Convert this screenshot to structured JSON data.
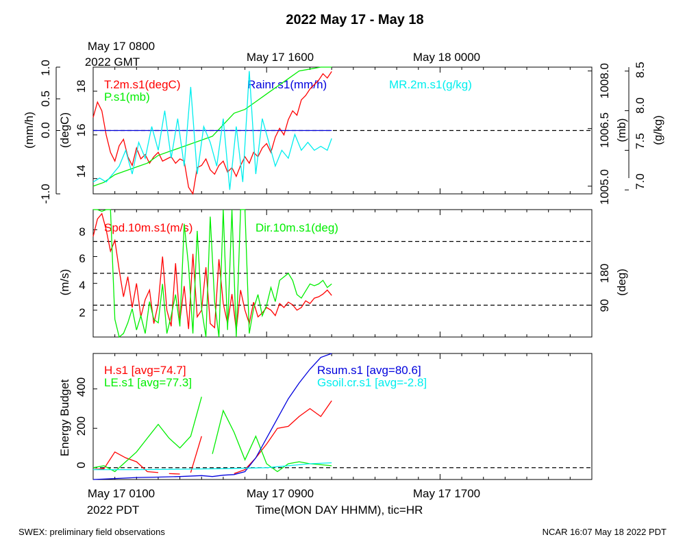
{
  "title": "2022 May 17 - May 18",
  "top_time_labels": [
    "May 17 0800",
    "May 17 1600",
    "May 18 0000"
  ],
  "top_tz_label": "2022 GMT",
  "bottom_time_labels": [
    "May 17 0100",
    "May 17 0900",
    "May 17 1700"
  ],
  "bottom_tz_label": "2022 PDT",
  "xlabel": "Time(MON DAY HHMM), tic=HR",
  "footer_left": "SWEX: preliminary field observations",
  "footer_right": "NCAR 16:07 May 18 2022 PDT",
  "colors": {
    "red": "#ff0000",
    "green": "#00ee00",
    "blue": "#0000dd",
    "cyan": "#00eeee",
    "black": "#000000"
  },
  "chart_data": [
    {
      "type": "line",
      "panel": "top",
      "x_unit": "hours since May 17 0100 PDT",
      "xlim": [
        0,
        23
      ],
      "axes": [
        {
          "label": "(mm/h)",
          "ticks": [
            "-1.0",
            "0.0",
            "0.5",
            "1.0"
          ],
          "lim": [
            -1.0,
            1.0
          ]
        },
        {
          "label": "(degC)",
          "ticks": [
            "14",
            "16",
            "18"
          ],
          "lim": [
            13.3,
            19.1
          ]
        },
        {
          "label": "(mb)",
          "ticks": [
            "1005.0",
            "1006.5",
            "1008.0"
          ],
          "lim": [
            1004.8,
            1008.1
          ]
        },
        {
          "label": "(g/kg)",
          "ticks": [
            "7.0",
            "7.5",
            "8.0",
            "8.5"
          ],
          "lim": [
            6.95,
            8.55
          ]
        }
      ],
      "reference_line": 0.0,
      "series": [
        {
          "name": "T.2m.s1(degC)",
          "color": "#ff0000",
          "axis": "(degC)",
          "x": [
            0.0,
            0.2,
            0.4,
            0.6,
            0.8,
            1.0,
            1.2,
            1.4,
            1.6,
            1.8,
            2.0,
            2.2,
            2.4,
            2.6,
            2.8,
            3.0,
            3.2,
            3.4,
            3.6,
            3.8,
            4.0,
            4.2,
            4.4,
            4.6,
            4.8,
            5.0,
            5.2,
            5.4,
            5.6,
            5.8,
            6.0,
            6.2,
            6.4,
            6.6,
            6.8,
            7.0,
            7.2,
            7.4,
            7.6,
            7.8,
            8.0,
            8.2,
            8.4,
            8.6,
            8.8,
            9.0,
            9.2,
            9.4,
            9.6,
            9.8,
            10.0,
            10.2,
            10.4,
            10.6,
            10.8,
            11.0
          ],
          "y": [
            16.8,
            17.5,
            17.1,
            16.0,
            15.2,
            14.8,
            15.5,
            15.8,
            15.0,
            14.6,
            15.4,
            14.9,
            15.1,
            14.7,
            15.0,
            15.2,
            14.8,
            14.9,
            15.0,
            14.7,
            14.9,
            14.8,
            13.6,
            13.3,
            14.5,
            14.6,
            14.9,
            14.4,
            14.2,
            14.6,
            14.8,
            14.3,
            14.5,
            14.1,
            14.6,
            15.0,
            14.7,
            15.2,
            15.0,
            15.4,
            15.6,
            15.2,
            15.9,
            16.3,
            16.0,
            16.7,
            17.1,
            16.9,
            17.6,
            17.8,
            18.1,
            18.3,
            18.5,
            18.8,
            18.6,
            18.9
          ]
        },
        {
          "name": "P.s1(mb)",
          "color": "#00ee00",
          "axis": "(mb)",
          "x": [
            0.0,
            0.5,
            1.0,
            1.5,
            2.0,
            2.5,
            3.0,
            3.5,
            4.0,
            4.5,
            5.0,
            5.5,
            6.0,
            6.5,
            7.0,
            7.5,
            8.0,
            8.5,
            9.0,
            9.5,
            10.0,
            10.5,
            11.0
          ],
          "y": [
            1005.0,
            1005.1,
            1005.3,
            1005.4,
            1005.5,
            1005.6,
            1005.8,
            1005.9,
            1006.0,
            1006.1,
            1006.2,
            1006.3,
            1006.6,
            1006.9,
            1007.0,
            1007.2,
            1007.4,
            1007.6,
            1007.8,
            1008.0,
            1008.05,
            1008.1,
            1008.1
          ]
        },
        {
          "name": "Rainr.s1(mm/h)",
          "color": "#0000dd",
          "axis": "(mm/h)",
          "x": [
            0.0,
            11.0
          ],
          "y": [
            0.0,
            0.0
          ]
        },
        {
          "name": "MR.2m.s1(g/kg)",
          "color": "#00eeee",
          "axis": "(g/kg)",
          "x": [
            0.0,
            0.3,
            0.6,
            0.9,
            1.2,
            1.5,
            1.8,
            2.1,
            2.4,
            2.7,
            3.0,
            3.3,
            3.6,
            3.9,
            4.2,
            4.5,
            4.8,
            5.1,
            5.4,
            5.7,
            6.0,
            6.3,
            6.6,
            6.9,
            7.2,
            7.5,
            7.8,
            8.1,
            8.4,
            8.7,
            9.0,
            9.3,
            9.6,
            9.9,
            10.2,
            10.5,
            10.8,
            11.0
          ],
          "y": [
            7.1,
            7.15,
            7.1,
            7.2,
            7.3,
            7.5,
            7.2,
            7.6,
            7.4,
            7.8,
            7.5,
            8.0,
            7.4,
            7.9,
            7.3,
            8.3,
            7.2,
            7.8,
            7.6,
            7.3,
            7.9,
            7.0,
            7.8,
            7.1,
            8.5,
            7.2,
            7.9,
            7.6,
            7.3,
            7.5,
            7.4,
            7.7,
            7.5,
            7.6,
            7.5,
            7.55,
            7.5,
            7.65
          ]
        }
      ]
    },
    {
      "type": "line",
      "panel": "middle",
      "x_unit": "hours since May 17 0100 PDT",
      "xlim": [
        0,
        23
      ],
      "axes": [
        {
          "label": "(m/s)",
          "ticks": [
            "2",
            "4",
            "6",
            "8"
          ],
          "lim": [
            0.0,
            9.5
          ]
        },
        {
          "label": "(deg)",
          "ticks": [
            "90",
            "180"
          ],
          "lim": [
            0,
            360
          ]
        }
      ],
      "reference_lines": [
        90,
        180,
        270
      ],
      "series": [
        {
          "name": "Spd.10m.s1(m/s)",
          "color": "#ff0000",
          "axis": "(m/s)",
          "x": [
            0.0,
            0.2,
            0.4,
            0.6,
            0.8,
            1.0,
            1.2,
            1.4,
            1.6,
            1.8,
            2.0,
            2.2,
            2.4,
            2.6,
            2.8,
            3.0,
            3.2,
            3.4,
            3.6,
            3.8,
            4.0,
            4.2,
            4.4,
            4.6,
            4.8,
            5.0,
            5.2,
            5.4,
            5.6,
            5.8,
            6.0,
            6.2,
            6.4,
            6.6,
            6.8,
            7.0,
            7.2,
            7.4,
            7.6,
            7.8,
            8.0,
            8.2,
            8.4,
            8.6,
            8.8,
            9.0,
            9.2,
            9.4,
            9.6,
            9.8,
            10.0,
            10.2,
            10.4,
            10.6,
            10.8,
            11.0
          ],
          "y": [
            7.5,
            8.8,
            9.2,
            8.0,
            6.4,
            7.2,
            5.0,
            3.0,
            4.5,
            2.2,
            4.0,
            1.5,
            2.8,
            3.5,
            1.0,
            2.5,
            6.0,
            2.0,
            0.8,
            5.5,
            1.2,
            3.8,
            0.6,
            6.2,
            1.5,
            2.0,
            5.2,
            1.0,
            0.7,
            5.8,
            2.5,
            1.0,
            3.2,
            0.5,
            3.5,
            2.0,
            1.0,
            2.6,
            1.5,
            1.8,
            2.2,
            2.0,
            1.6,
            2.5,
            2.2,
            2.6,
            2.4,
            2.0,
            2.2,
            2.7,
            2.5,
            2.9,
            3.0,
            3.2,
            3.5,
            3.1
          ]
        },
        {
          "name": "Dir.10m.s1(deg)",
          "color": "#00ee00",
          "axis": "(deg)",
          "x": [
            0.0,
            0.2,
            0.4,
            0.6,
            0.8,
            1.0,
            1.2,
            1.4,
            1.6,
            1.8,
            2.0,
            2.2,
            2.4,
            2.6,
            2.8,
            3.0,
            3.2,
            3.4,
            3.6,
            3.8,
            4.0,
            4.2,
            4.4,
            4.6,
            4.8,
            5.0,
            5.2,
            5.4,
            5.6,
            5.8,
            6.0,
            6.2,
            6.4,
            6.6,
            6.8,
            7.0,
            7.2,
            7.4,
            7.6,
            7.8,
            8.0,
            8.2,
            8.4,
            8.6,
            8.8,
            9.0,
            9.2,
            9.4,
            9.6,
            9.8,
            10.0,
            10.2,
            10.4,
            10.6,
            10.8,
            11.0
          ],
          "y": [
            360,
            360,
            355,
            360,
            360,
            50,
            0,
            10,
            40,
            80,
            20,
            60,
            10,
            100,
            50,
            40,
            150,
            10,
            60,
            120,
            30,
            320,
            200,
            10,
            300,
            80,
            0,
            340,
            100,
            0,
            360,
            20,
            360,
            0,
            360,
            360,
            10,
            80,
            120,
            60,
            90,
            140,
            100,
            160,
            170,
            180,
            160,
            120,
            110,
            130,
            150,
            145,
            150,
            160,
            140,
            150
          ]
        }
      ]
    },
    {
      "type": "line",
      "panel": "bottom",
      "x_unit": "hours since May 17 0100 PDT",
      "xlim": [
        0,
        23
      ],
      "ylabel": "Energy Budget",
      "yticks": [
        "0",
        "200",
        "400"
      ],
      "ylim": [
        -60,
        580
      ],
      "reference_line": 0,
      "series": [
        {
          "name": "H.s1 [avg=74.7]",
          "color": "#ff0000",
          "segments": [
            {
              "x": [
                0.0,
                0.5,
                1.0,
                1.5,
                2.0,
                2.5,
                3.0
              ],
              "y": [
                -10,
                -5,
                80,
                50,
                30,
                -20,
                -25
              ]
            },
            {
              "x": [
                3.5,
                4.0
              ],
              "y": [
                -30,
                -32
              ]
            },
            {
              "x": [
                4.5,
                5.0
              ],
              "y": [
                -25,
                160
              ]
            },
            {
              "x": [
                6.5,
                7.0,
                7.5,
                8.0,
                8.5,
                9.0,
                9.5,
                10.0,
                10.5,
                11.0
              ],
              "y": [
                -30,
                -10,
                50,
                120,
                200,
                210,
                260,
                300,
                260,
                340
              ]
            }
          ]
        },
        {
          "name": "LE.s1 [avg=77.3]",
          "color": "#00ee00",
          "segments": [
            {
              "x": [
                0.0,
                0.5,
                1.0,
                1.5,
                2.0,
                2.5,
                3.0,
                3.5,
                4.0,
                4.5,
                5.0
              ],
              "y": [
                0,
                10,
                -20,
                30,
                80,
                150,
                220,
                150,
                100,
                160,
                360
              ]
            },
            {
              "x": [
                5.5,
                6.0,
                6.5,
                7.0,
                7.5,
                8.0,
                8.5,
                9.0,
                9.5,
                10.0,
                10.5,
                11.0
              ],
              "y": [
                70,
                290,
                180,
                40,
                160,
                20,
                -20,
                20,
                30,
                20,
                15,
                10
              ]
            }
          ]
        },
        {
          "name": "Rsum.s1 [avg=80.6]",
          "color": "#0000dd",
          "segments": [
            {
              "x": [
                0.0,
                1.0,
                2.0,
                3.0,
                4.0,
                5.0,
                5.5,
                6.0,
                6.5,
                7.0,
                7.5,
                8.0,
                8.5,
                9.0,
                9.5,
                10.0,
                10.5,
                11.0
              ],
              "y": [
                -60,
                -55,
                -50,
                -48,
                -45,
                -40,
                -45,
                -38,
                -35,
                -20,
                50,
                150,
                250,
                350,
                430,
                500,
                560,
                590
              ]
            }
          ]
        },
        {
          "name": "Gsoil.cr.s1 [avg=-2.8]",
          "color": "#00eeee",
          "segments": [
            {
              "x": [
                0.0,
                2.0,
                4.0,
                6.0,
                8.0,
                9.0,
                10.0,
                11.0
              ],
              "y": [
                -10,
                -10,
                -8,
                -5,
                0,
                10,
                20,
                25
              ]
            }
          ]
        }
      ]
    }
  ]
}
